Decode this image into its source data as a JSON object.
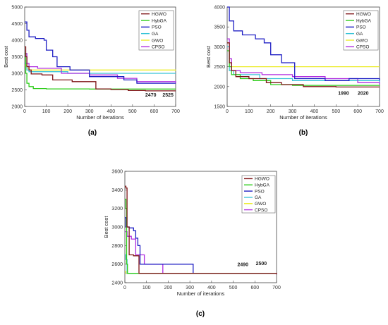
{
  "series_colors": {
    "HGWO": "#7f1416",
    "HybGA": "#2ecc1a",
    "PSO": "#1f1fc4",
    "GA": "#39c4d8",
    "GWO": "#ecec2a",
    "CPSO": "#b02ee0"
  },
  "chart_data": [
    {
      "type": "line",
      "panel_label": "(a)",
      "xlabel": "Number of iterations",
      "ylabel": "Best cost",
      "xlim": [
        0,
        700
      ],
      "ylim": [
        2000,
        5000
      ],
      "xticks": [
        0,
        100,
        200,
        300,
        400,
        500,
        600,
        700
      ],
      "yticks": [
        2000,
        2500,
        3000,
        3500,
        4000,
        4500,
        5000
      ],
      "legend_position": "top-right",
      "annotations": [
        {
          "text": "2470",
          "x": 610,
          "y": 2300
        },
        {
          "text": "2525",
          "x": 690,
          "y": 2300
        }
      ],
      "series": [
        {
          "name": "HGWO",
          "points": [
            [
              0,
              3800
            ],
            [
              5,
              3500
            ],
            [
              10,
              3200
            ],
            [
              20,
              3100
            ],
            [
              30,
              2980
            ],
            [
              80,
              2950
            ],
            [
              130,
              2800
            ],
            [
              220,
              2750
            ],
            [
              330,
              2530
            ],
            [
              400,
              2510
            ],
            [
              480,
              2480
            ],
            [
              560,
              2470
            ],
            [
              700,
              2470
            ]
          ]
        },
        {
          "name": "HybGA",
          "points": [
            [
              0,
              3600
            ],
            [
              5,
              3000
            ],
            [
              10,
              2700
            ],
            [
              20,
              2600
            ],
            [
              40,
              2540
            ],
            [
              100,
              2530
            ],
            [
              300,
              2525
            ],
            [
              700,
              2525
            ]
          ]
        },
        {
          "name": "PSO",
          "points": [
            [
              0,
              4550
            ],
            [
              10,
              4300
            ],
            [
              20,
              4100
            ],
            [
              50,
              4050
            ],
            [
              90,
              4000
            ],
            [
              100,
              3700
            ],
            [
              130,
              3500
            ],
            [
              150,
              3200
            ],
            [
              210,
              3100
            ],
            [
              300,
              2900
            ],
            [
              460,
              2800
            ],
            [
              520,
              2700
            ],
            [
              650,
              2700
            ],
            [
              700,
              2700
            ]
          ]
        },
        {
          "name": "GA",
          "points": [
            [
              0,
              3300
            ],
            [
              10,
              3100
            ],
            [
              20,
              3050
            ],
            [
              100,
              3050
            ],
            [
              200,
              3000
            ],
            [
              700,
              3000
            ]
          ]
        },
        {
          "name": "GWO",
          "points": [
            [
              0,
              3250
            ],
            [
              10,
              3150
            ],
            [
              20,
              3100
            ],
            [
              300,
              3100
            ],
            [
              700,
              3080
            ]
          ]
        },
        {
          "name": "CPSO",
          "points": [
            [
              0,
              3600
            ],
            [
              10,
              3300
            ],
            [
              20,
              3200
            ],
            [
              60,
              3150
            ],
            [
              140,
              3150
            ],
            [
              170,
              3000
            ],
            [
              300,
              2950
            ],
            [
              430,
              2850
            ],
            [
              520,
              2750
            ],
            [
              700,
              2700
            ]
          ]
        }
      ]
    },
    {
      "type": "line",
      "panel_label": "(b)",
      "xlabel": "Number of iterations",
      "ylabel": "Best cost",
      "xlim": [
        0,
        700
      ],
      "ylim": [
        1500,
        4000
      ],
      "xticks": [
        0,
        100,
        200,
        300,
        400,
        500,
        600,
        700
      ],
      "yticks": [
        1500,
        2000,
        2500,
        3000,
        3500,
        4000
      ],
      "legend_position": "top-right",
      "annotations": [
        {
          "text": "1990",
          "x": 560,
          "y": 1790
        },
        {
          "text": "2020",
          "x": 650,
          "y": 1790
        }
      ],
      "series": [
        {
          "name": "HGWO",
          "points": [
            [
              0,
              3100
            ],
            [
              10,
              2600
            ],
            [
              20,
              2400
            ],
            [
              40,
              2250
            ],
            [
              100,
              2200
            ],
            [
              180,
              2100
            ],
            [
              250,
              2050
            ],
            [
              350,
              2000
            ],
            [
              500,
              1990
            ],
            [
              700,
              1990
            ]
          ]
        },
        {
          "name": "HybGA",
          "points": [
            [
              0,
              2900
            ],
            [
              10,
              2500
            ],
            [
              20,
              2300
            ],
            [
              60,
              2200
            ],
            [
              120,
              2150
            ],
            [
              200,
              2050
            ],
            [
              300,
              2030
            ],
            [
              700,
              2020
            ]
          ]
        },
        {
          "name": "PSO",
          "points": [
            [
              0,
              4000
            ],
            [
              10,
              3650
            ],
            [
              30,
              3400
            ],
            [
              70,
              3300
            ],
            [
              130,
              3200
            ],
            [
              170,
              3100
            ],
            [
              200,
              2800
            ],
            [
              250,
              2600
            ],
            [
              290,
              2600
            ],
            [
              310,
              2200
            ],
            [
              450,
              2150
            ],
            [
              560,
              2200
            ],
            [
              640,
              2200
            ],
            [
              700,
              2150
            ]
          ]
        },
        {
          "name": "GA",
          "points": [
            [
              0,
              3000
            ],
            [
              10,
              2400
            ],
            [
              30,
              2300
            ],
            [
              150,
              2200
            ],
            [
              300,
              2150
            ],
            [
              700,
              2100
            ]
          ]
        },
        {
          "name": "GWO",
          "points": [
            [
              0,
              3100
            ],
            [
              10,
              2600
            ],
            [
              20,
              2500
            ],
            [
              700,
              2500
            ]
          ]
        },
        {
          "name": "CPSO",
          "points": [
            [
              0,
              3200
            ],
            [
              10,
              2700
            ],
            [
              20,
              2400
            ],
            [
              60,
              2350
            ],
            [
              160,
              2300
            ],
            [
              300,
              2250
            ],
            [
              450,
              2200
            ],
            [
              600,
              2100
            ],
            [
              700,
              2050
            ]
          ]
        }
      ]
    },
    {
      "type": "line",
      "panel_label": "(c)",
      "xlabel": "Number of iterations",
      "ylabel": "Best cost",
      "xlim": [
        0,
        700
      ],
      "ylim": [
        2400,
        3600
      ],
      "xticks": [
        0,
        100,
        200,
        300,
        400,
        500,
        600,
        700
      ],
      "yticks": [
        2400,
        2600,
        2800,
        3000,
        3200,
        3400,
        3600
      ],
      "legend_position": "top-right",
      "annotations": [
        {
          "text": "2490",
          "x": 570,
          "y": 2580
        },
        {
          "text": "2500",
          "x": 655,
          "y": 2590
        }
      ],
      "series": [
        {
          "name": "HGWO",
          "points": [
            [
              0,
              3440
            ],
            [
              5,
              3420
            ],
            [
              10,
              3000
            ],
            [
              20,
              2700
            ],
            [
              40,
              2690
            ],
            [
              60,
              2690
            ],
            [
              65,
              2500
            ],
            [
              700,
              2490
            ]
          ]
        },
        {
          "name": "HybGA",
          "points": [
            [
              0,
              3300
            ],
            [
              5,
              3200
            ],
            [
              8,
              2600
            ],
            [
              12,
              2500
            ],
            [
              700,
              2500
            ]
          ]
        },
        {
          "name": "PSO",
          "points": [
            [
              0,
              3100
            ],
            [
              5,
              3000
            ],
            [
              20,
              2990
            ],
            [
              40,
              2960
            ],
            [
              50,
              2880
            ],
            [
              60,
              2800
            ],
            [
              70,
              2600
            ],
            [
              180,
              2600
            ],
            [
              310,
              2600
            ],
            [
              315,
              2500
            ],
            [
              700,
              2500
            ]
          ]
        },
        {
          "name": "GA",
          "points": [
            [
              0,
              2700
            ],
            [
              5,
              2650
            ],
            [
              10,
              2500
            ],
            [
              700,
              2500
            ]
          ]
        },
        {
          "name": "GWO",
          "points": [
            [
              0,
              2520
            ],
            [
              5,
              2500
            ],
            [
              700,
              2500
            ]
          ]
        },
        {
          "name": "CPSO",
          "points": [
            [
              0,
              2950
            ],
            [
              10,
              2900
            ],
            [
              30,
              2870
            ],
            [
              50,
              2700
            ],
            [
              90,
              2600
            ],
            [
              170,
              2600
            ],
            [
              175,
              2500
            ],
            [
              700,
              2490
            ]
          ]
        }
      ]
    }
  ]
}
